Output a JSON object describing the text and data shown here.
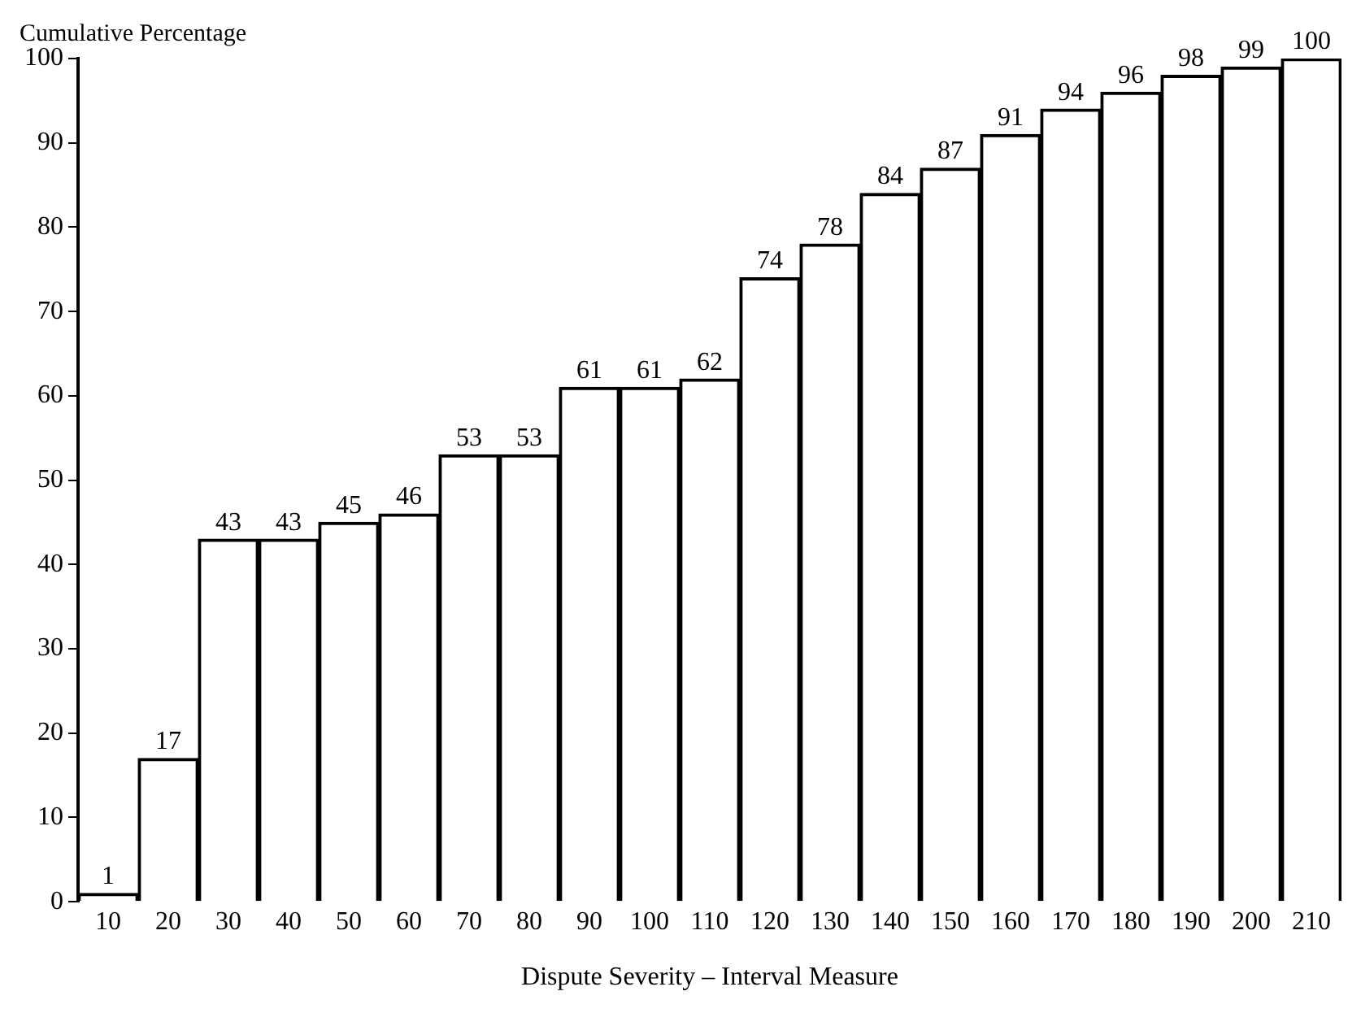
{
  "chart_data": {
    "type": "bar",
    "ylabel": "Cumulative Percentage",
    "xlabel": "Dispute Severity – Interval Measure",
    "categories": [
      "10",
      "20",
      "30",
      "40",
      "50",
      "60",
      "70",
      "80",
      "90",
      "100",
      "110",
      "120",
      "130",
      "140",
      "150",
      "160",
      "170",
      "180",
      "190",
      "200",
      "210"
    ],
    "values": [
      1,
      17,
      43,
      43,
      45,
      46,
      53,
      53,
      61,
      61,
      62,
      74,
      78,
      84,
      87,
      91,
      94,
      96,
      98,
      99,
      100
    ],
    "color": "#ffffff",
    "ylim": [
      0,
      100
    ],
    "yticks": [
      0,
      10,
      20,
      30,
      40,
      50,
      60,
      70,
      80,
      90,
      100
    ],
    "grid": false,
    "data_labels": true
  }
}
